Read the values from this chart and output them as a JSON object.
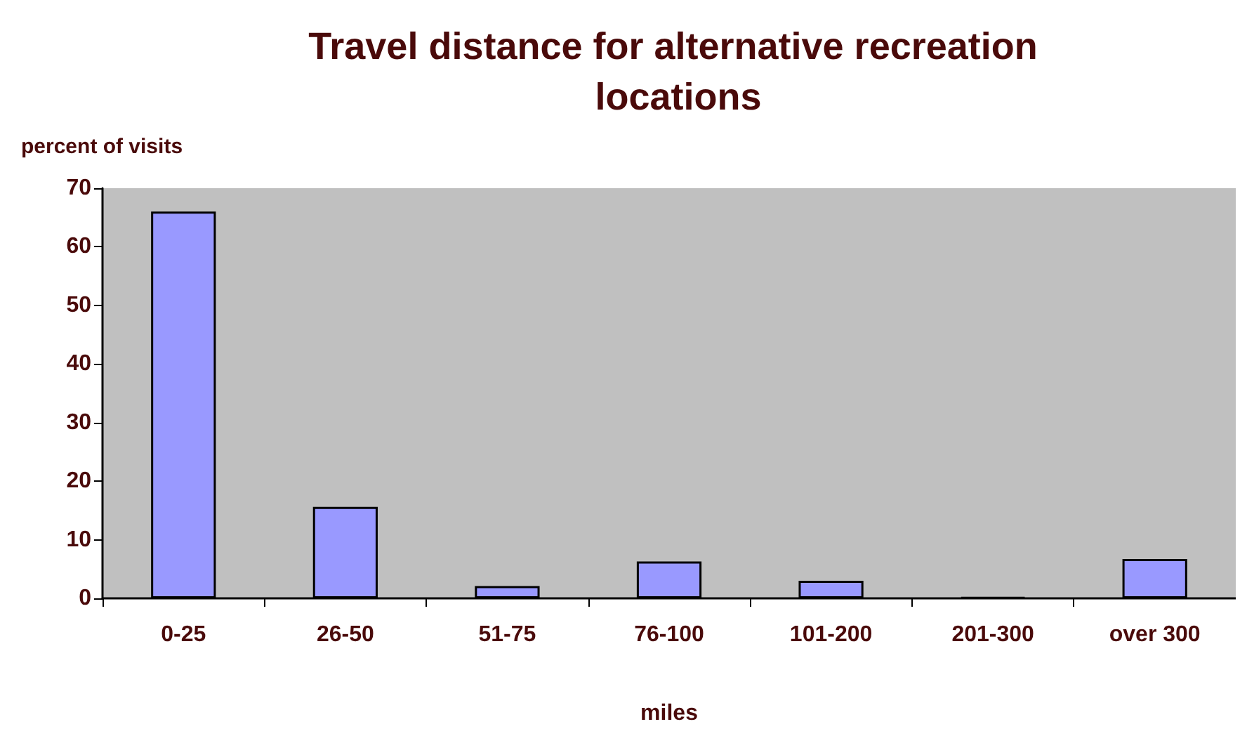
{
  "chart_data": {
    "type": "bar",
    "title": "Travel distance for alternative recreation locations",
    "xlabel": "miles",
    "ylabel": "percent of visits",
    "categories": [
      "0-25",
      "26-50",
      "51-75",
      "76-100",
      "101-200",
      "201-300",
      "over 300"
    ],
    "values": [
      66,
      15.6,
      2.1,
      6.3,
      3,
      0.2,
      6.7
    ],
    "color": "#9999ff",
    "ylim": [
      0,
      70
    ],
    "yticks": [
      0,
      10,
      20,
      30,
      40,
      50,
      60,
      70
    ],
    "grid": false
  }
}
